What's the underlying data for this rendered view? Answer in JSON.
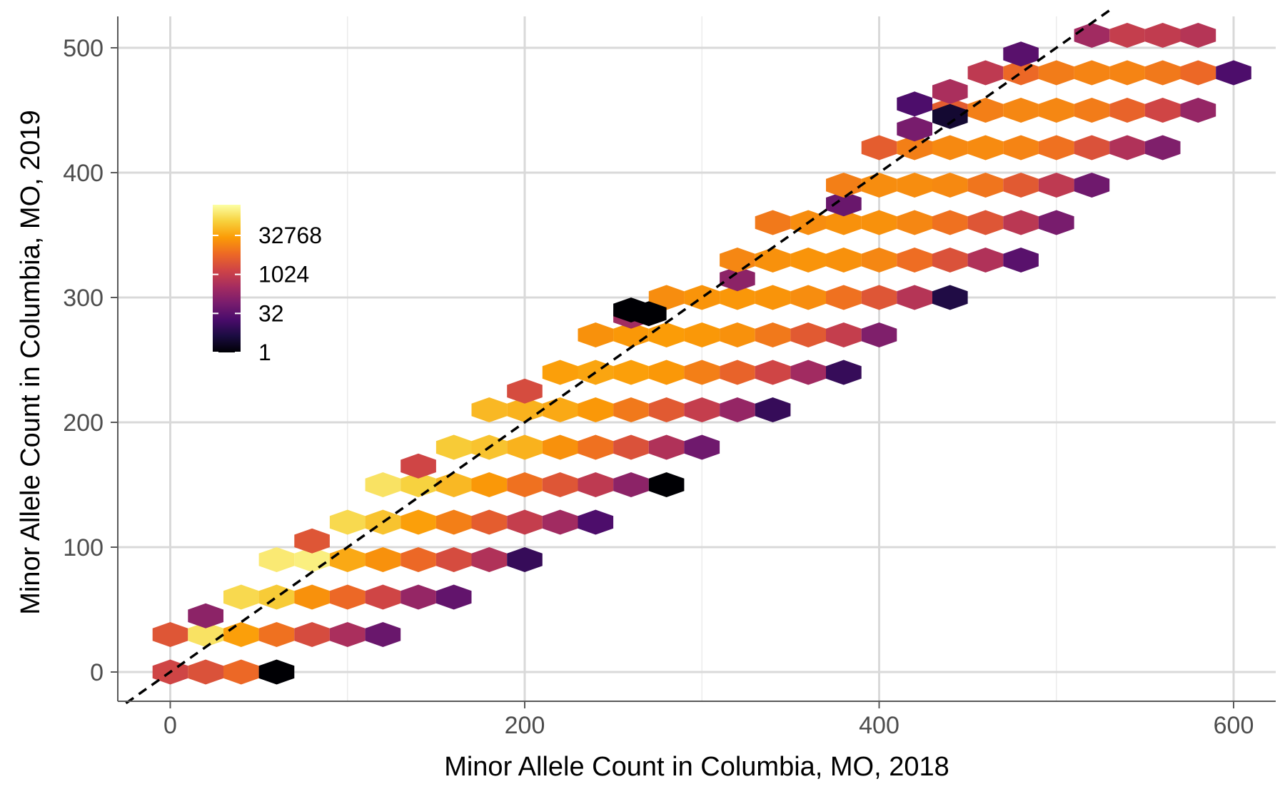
{
  "chart_data": {
    "type": "heatmap",
    "subtype": "hexbin",
    "title": "",
    "xlabel": "Minor Allele Count in Columbia, MO, 2018",
    "ylabel": "Minor Allele Count in Columbia, MO, 2019",
    "xlim": [
      -25,
      620
    ],
    "ylim": [
      -25,
      525
    ],
    "x_ticks": [
      0,
      200,
      400,
      600
    ],
    "y_ticks": [
      0,
      100,
      200,
      300,
      400,
      500
    ],
    "x_tick_labels": [
      "0",
      "200",
      "400",
      "600"
    ],
    "y_tick_labels": [
      "0",
      "100",
      "200",
      "300",
      "400",
      "500"
    ],
    "grid": "on",
    "reference_line": {
      "style": "dashed",
      "color": "#000000",
      "x": [
        -25,
        530
      ],
      "y": [
        -25,
        530
      ]
    },
    "color_scale": {
      "name": "inferno",
      "scale": "log2",
      "stops": [
        "#000004",
        "#1b0c41",
        "#4a0c6b",
        "#781c6d",
        "#a52c60",
        "#cf4446",
        "#ed6925",
        "#fb9b06",
        "#f7d13d",
        "#fcffa4"
      ],
      "legend_breaks": [
        32768,
        1024,
        32,
        1
      ],
      "legend_labels": [
        "32768",
        "1024",
        "32",
        "1"
      ],
      "legend_range": [
        1,
        500000
      ],
      "legend_position": "inside-left"
    },
    "hex_dx": 20,
    "hex_dy": 15,
    "cells": [
      [
        0,
        0,
        1500
      ],
      [
        20,
        0,
        2500
      ],
      [
        40,
        0,
        6000
      ],
      [
        60,
        0,
        1
      ],
      [
        0,
        30,
        3000
      ],
      [
        20,
        30,
        200000
      ],
      [
        40,
        30,
        30000
      ],
      [
        60,
        30,
        8000
      ],
      [
        80,
        30,
        2000
      ],
      [
        100,
        30,
        400
      ],
      [
        120,
        30,
        50
      ],
      [
        20,
        45,
        150
      ],
      [
        40,
        60,
        150000
      ],
      [
        60,
        60,
        100000
      ],
      [
        80,
        60,
        20000
      ],
      [
        100,
        60,
        6000
      ],
      [
        120,
        60,
        1500
      ],
      [
        140,
        60,
        200
      ],
      [
        160,
        60,
        40
      ],
      [
        60,
        90,
        250000
      ],
      [
        80,
        90,
        300000
      ],
      [
        100,
        90,
        40000
      ],
      [
        120,
        90,
        20000
      ],
      [
        140,
        90,
        6000
      ],
      [
        160,
        90,
        2000
      ],
      [
        180,
        90,
        500
      ],
      [
        200,
        90,
        10
      ],
      [
        80,
        105,
        3000
      ],
      [
        100,
        120,
        150000
      ],
      [
        120,
        120,
        80000
      ],
      [
        140,
        120,
        30000
      ],
      [
        160,
        120,
        12000
      ],
      [
        180,
        120,
        4000
      ],
      [
        200,
        120,
        1000
      ],
      [
        220,
        120,
        300
      ],
      [
        240,
        120,
        20
      ],
      [
        120,
        150,
        200000
      ],
      [
        140,
        150,
        120000
      ],
      [
        160,
        150,
        60000
      ],
      [
        180,
        150,
        25000
      ],
      [
        200,
        150,
        8000
      ],
      [
        220,
        150,
        3000
      ],
      [
        240,
        150,
        800
      ],
      [
        260,
        150,
        150
      ],
      [
        280,
        150,
        1
      ],
      [
        140,
        165,
        1500
      ],
      [
        160,
        180,
        100000
      ],
      [
        180,
        180,
        80000
      ],
      [
        200,
        180,
        50000
      ],
      [
        220,
        180,
        20000
      ],
      [
        240,
        180,
        8000
      ],
      [
        260,
        180,
        2500
      ],
      [
        280,
        180,
        500
      ],
      [
        300,
        180,
        60
      ],
      [
        180,
        210,
        60000
      ],
      [
        200,
        210,
        50000
      ],
      [
        220,
        210,
        40000
      ],
      [
        240,
        210,
        25000
      ],
      [
        260,
        210,
        10000
      ],
      [
        280,
        210,
        3500
      ],
      [
        300,
        210,
        1000
      ],
      [
        320,
        210,
        200
      ],
      [
        340,
        210,
        10
      ],
      [
        200,
        225,
        2000
      ],
      [
        220,
        240,
        30000
      ],
      [
        240,
        240,
        35000
      ],
      [
        260,
        240,
        30000
      ],
      [
        280,
        240,
        25000
      ],
      [
        300,
        240,
        12000
      ],
      [
        320,
        240,
        5000
      ],
      [
        340,
        240,
        1500
      ],
      [
        360,
        240,
        300
      ],
      [
        380,
        240,
        10
      ],
      [
        240,
        270,
        20000
      ],
      [
        260,
        270,
        25000
      ],
      [
        280,
        270,
        28000
      ],
      [
        300,
        270,
        25000
      ],
      [
        320,
        270,
        20000
      ],
      [
        340,
        270,
        10000
      ],
      [
        360,
        270,
        3500
      ],
      [
        380,
        270,
        1000
      ],
      [
        400,
        270,
        100
      ],
      [
        260,
        285,
        300
      ],
      [
        280,
        300,
        18000
      ],
      [
        300,
        300,
        22000
      ],
      [
        320,
        300,
        24000
      ],
      [
        340,
        300,
        22000
      ],
      [
        360,
        300,
        18000
      ],
      [
        380,
        300,
        8000
      ],
      [
        400,
        300,
        3000
      ],
      [
        420,
        300,
        600
      ],
      [
        440,
        300,
        5
      ],
      [
        320,
        315,
        150
      ],
      [
        320,
        330,
        15000
      ],
      [
        340,
        330,
        20000
      ],
      [
        360,
        330,
        22000
      ],
      [
        380,
        330,
        20000
      ],
      [
        400,
        330,
        15000
      ],
      [
        420,
        330,
        7000
      ],
      [
        440,
        330,
        2500
      ],
      [
        460,
        330,
        500
      ],
      [
        480,
        330,
        30
      ],
      [
        340,
        360,
        10000
      ],
      [
        360,
        360,
        18000
      ],
      [
        380,
        360,
        20000
      ],
      [
        400,
        360,
        20000
      ],
      [
        420,
        360,
        15000
      ],
      [
        440,
        360,
        8000
      ],
      [
        460,
        360,
        3000
      ],
      [
        480,
        360,
        700
      ],
      [
        500,
        360,
        80
      ],
      [
        380,
        375,
        50
      ],
      [
        380,
        390,
        12000
      ],
      [
        400,
        390,
        18000
      ],
      [
        420,
        390,
        18000
      ],
      [
        440,
        390,
        16000
      ],
      [
        460,
        390,
        9000
      ],
      [
        480,
        390,
        3500
      ],
      [
        500,
        390,
        800
      ],
      [
        520,
        390,
        60
      ],
      [
        400,
        420,
        4000
      ],
      [
        420,
        420,
        12000
      ],
      [
        440,
        420,
        16000
      ],
      [
        460,
        420,
        17000
      ],
      [
        480,
        420,
        14000
      ],
      [
        500,
        420,
        8000
      ],
      [
        520,
        420,
        2500
      ],
      [
        540,
        420,
        500
      ],
      [
        560,
        420,
        100
      ],
      [
        420,
        435,
        80
      ],
      [
        440,
        450,
        4000
      ],
      [
        460,
        450,
        12000
      ],
      [
        480,
        450,
        15000
      ],
      [
        500,
        450,
        15000
      ],
      [
        520,
        450,
        11000
      ],
      [
        540,
        450,
        5000
      ],
      [
        560,
        450,
        1500
      ],
      [
        580,
        450,
        200
      ],
      [
        460,
        480,
        800
      ],
      [
        480,
        480,
        6000
      ],
      [
        500,
        480,
        11000
      ],
      [
        520,
        480,
        14000
      ],
      [
        540,
        480,
        14000
      ],
      [
        560,
        480,
        10000
      ],
      [
        580,
        480,
        6000
      ],
      [
        600,
        480,
        20
      ],
      [
        480,
        495,
        30
      ],
      [
        520,
        510,
        300
      ],
      [
        540,
        510,
        1000
      ],
      [
        560,
        510,
        900
      ],
      [
        580,
        510,
        600
      ],
      [
        440,
        445,
        3
      ],
      [
        420,
        455,
        20
      ],
      [
        260,
        290,
        1
      ],
      [
        270,
        287,
        1
      ],
      [
        440,
        465,
        400
      ]
    ]
  }
}
